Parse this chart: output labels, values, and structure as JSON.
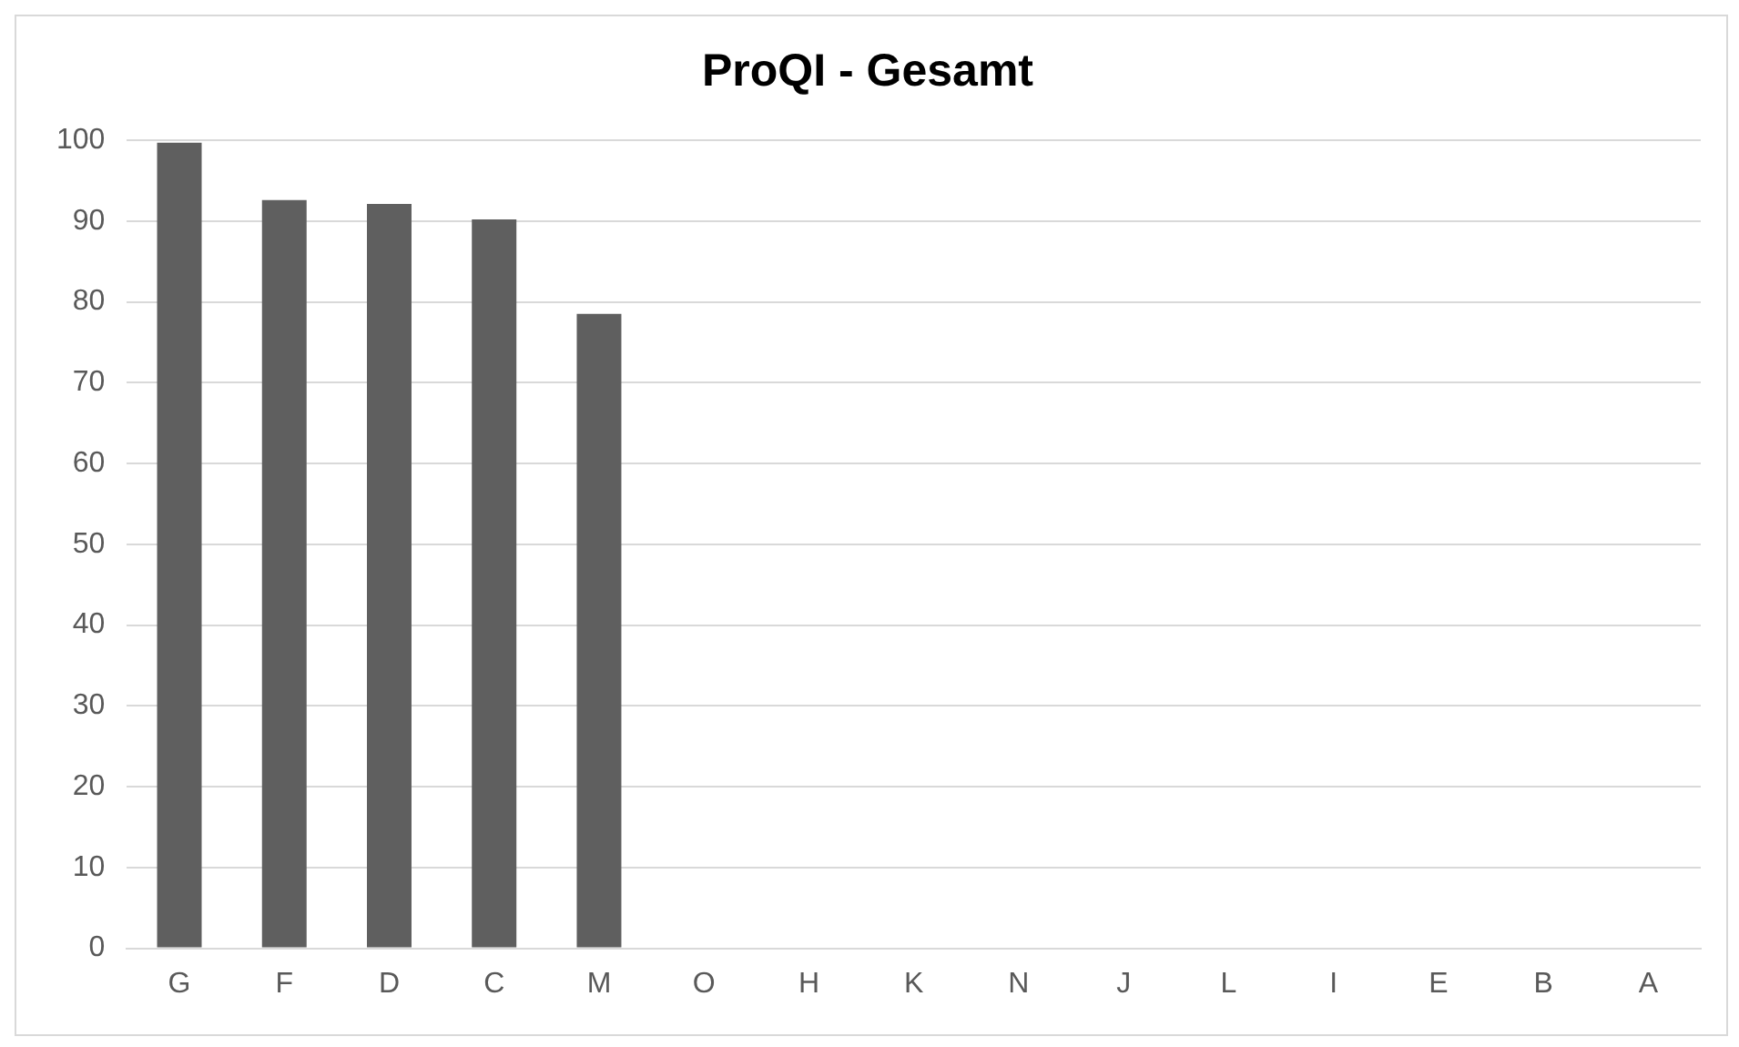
{
  "chart_data": {
    "type": "bar",
    "title": "ProQI - Gesamt",
    "categories": [
      "G",
      "F",
      "D",
      "C",
      "M",
      "O",
      "H",
      "K",
      "N",
      "J",
      "L",
      "I",
      "E",
      "B",
      "A"
    ],
    "values": [
      99.7,
      92.6,
      92.1,
      90.2,
      78.5,
      0,
      0,
      0,
      0,
      0,
      0,
      0,
      0,
      0,
      0
    ],
    "color": "#5f5f5f",
    "ylim": [
      0,
      100
    ],
    "yticks": [
      0,
      10,
      20,
      30,
      40,
      50,
      60,
      70,
      80,
      90,
      100
    ],
    "grid": "y",
    "legend": false
  }
}
